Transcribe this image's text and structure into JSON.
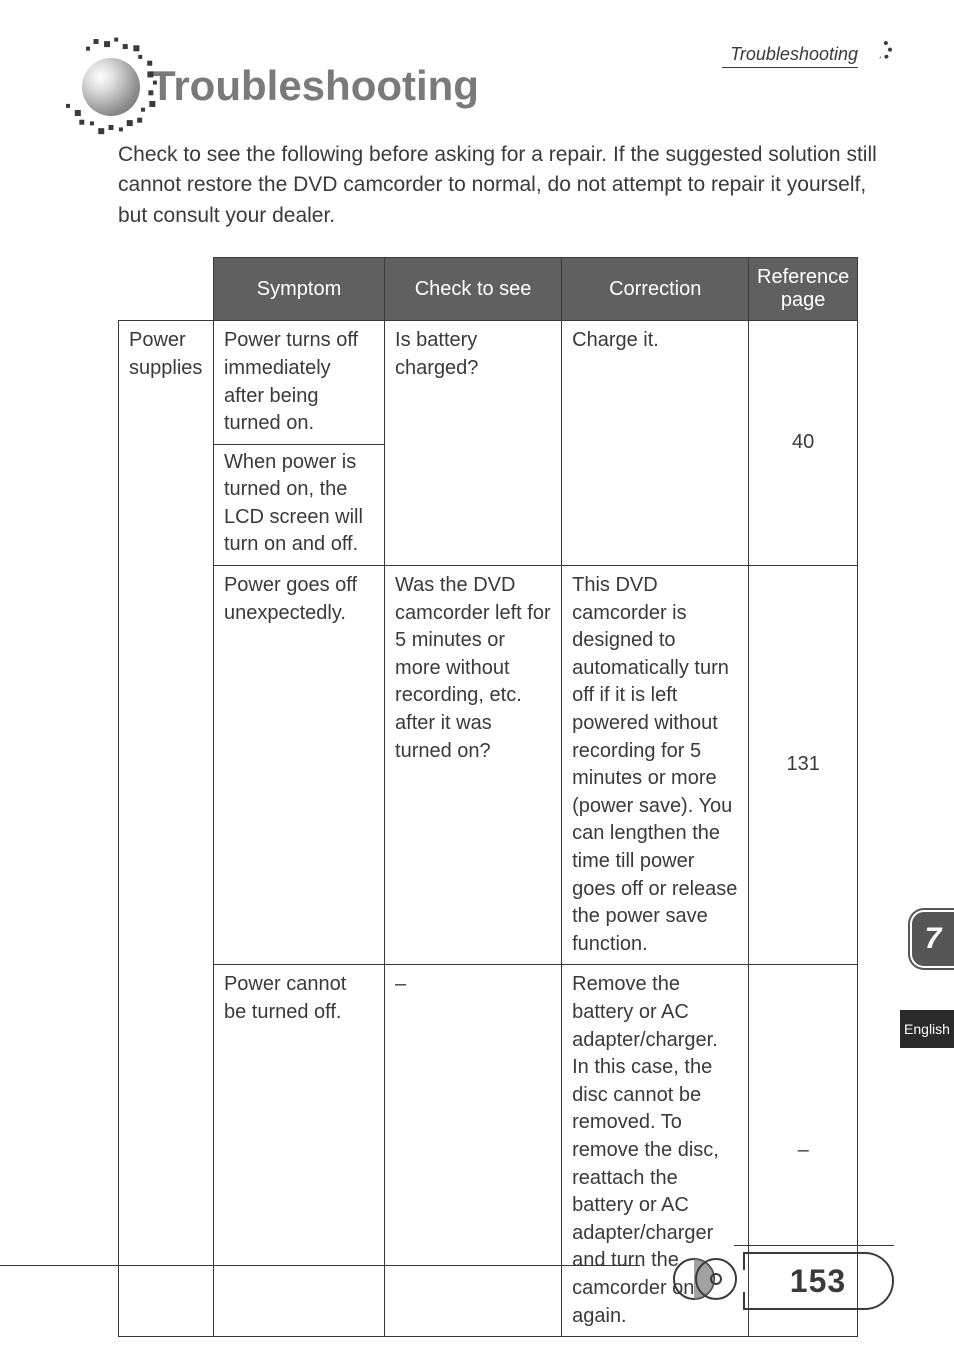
{
  "header": {
    "section": "Troubleshooting"
  },
  "title": "Troubleshooting",
  "intro": "Check to see the following before asking for a repair. If the suggested solution still cannot restore the DVD camcorder to normal, do not attempt to repair it yourself, but consult your dealer.",
  "table": {
    "headers": [
      "",
      "Symptom",
      "Check to see",
      "Correction",
      "Reference page"
    ],
    "category": "Power supplies",
    "rows": [
      {
        "symptom_a": "Power turns off immediately after being turned on.",
        "symptom_b": "When power is turned on, the LCD screen will turn on and off.",
        "check": "Is battery charged?",
        "correction": "Charge it.",
        "ref": "40"
      },
      {
        "symptom": "Power goes off unexpectedly.",
        "check": "Was the DVD camcorder left for 5 minutes or more without recording, etc. after it was turned on?",
        "correction": "This DVD camcorder is designed to automatically turn off if it is left powered without recording for 5 minutes or more (power save). You can lengthen the time till power goes off or release the power save function.",
        "ref": "131"
      },
      {
        "symptom": "Power cannot be turned off.",
        "check": "–",
        "correction": "Remove the battery or AC adapter/charger. In this case, the disc cannot be removed. To remove the disc, reattach the battery or AC adapter/charger and turn the camcorder on again.",
        "ref": "–"
      }
    ]
  },
  "side": {
    "chapter": "7",
    "language": "English"
  },
  "footer": {
    "page": "153"
  },
  "colors": {
    "header_bg": "#606060",
    "text": "#3a3a3a",
    "title": "#7a7a7a",
    "tab": "#565656",
    "lang_tab": "#2a2a2a"
  }
}
